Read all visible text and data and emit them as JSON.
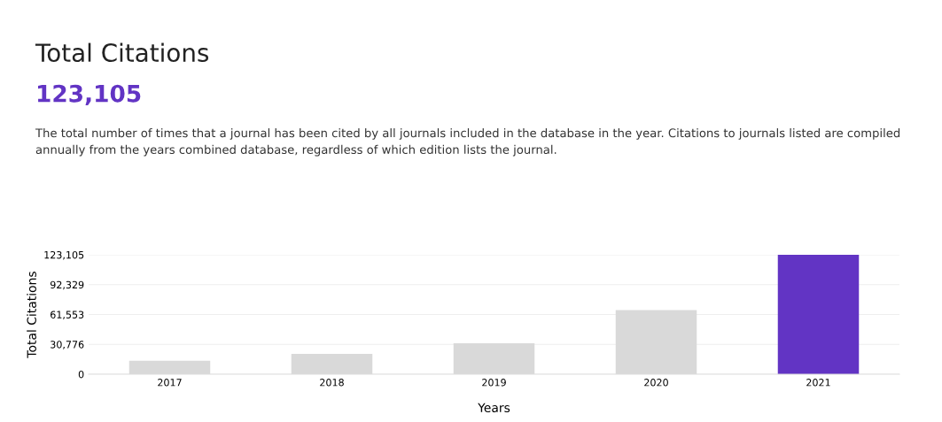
{
  "chart_data": {
    "type": "bar",
    "title": "Total Citations",
    "subtitle": "123,105",
    "annotations": [
      "The total number of times that a journal has been cited by all journals included in the database in the year. Citations to journals listed are compiled annually from the years combined database, regardless of which edition lists the journal."
    ],
    "categories": [
      "2017",
      "2018",
      "2019",
      "2020",
      "2021"
    ],
    "values": [
      14000,
      21000,
      32000,
      66000,
      123105
    ],
    "colors": [
      "#d9d9d9",
      "#d9d9d9",
      "#d9d9d9",
      "#d9d9d9",
      "#6234c4"
    ],
    "xlabel": "Years",
    "ylabel": "Total Citations",
    "ylim": [
      0,
      123105
    ],
    "yticks": [
      {
        "value": 0,
        "label": "0"
      },
      {
        "value": 30776,
        "label": "30,776"
      },
      {
        "value": 61553,
        "label": "61,553"
      },
      {
        "value": 92329,
        "label": "92,329"
      },
      {
        "value": 123105,
        "label": "123,105"
      }
    ],
    "grid": "y"
  }
}
